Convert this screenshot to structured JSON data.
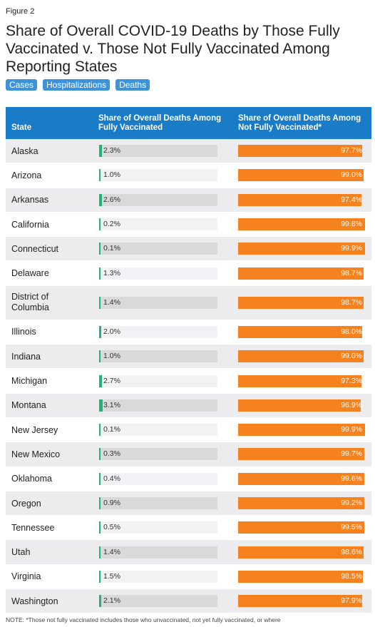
{
  "header": {
    "figure": "Figure 2",
    "title": "Share of Overall COVID-19 Deaths by Those Fully Vaccinated v. Those Not Fully Vaccinated Among Reporting States",
    "tabs": [
      "Cases",
      "Hospitalizations",
      "Deaths"
    ]
  },
  "table": {
    "columns": [
      "State",
      "Share of Overall Deaths Among Fully Vaccinated",
      "Share of Overall Deaths Among Not Fully Vaccinated*"
    ],
    "xlim": [
      0,
      100
    ],
    "colors": {
      "vaccinated": "#1fb57a",
      "not_vaccinated": "#f5821f"
    },
    "rows": [
      {
        "state": "Alaska",
        "vaccinated": 2.3,
        "vaccinated_label": "2.3%",
        "not_vaccinated": 97.7,
        "not_vaccinated_label": "97.7%"
      },
      {
        "state": "Arizona",
        "vaccinated": 1.0,
        "vaccinated_label": "1.0%",
        "not_vaccinated": 99.0,
        "not_vaccinated_label": "99.0%"
      },
      {
        "state": "Arkansas",
        "vaccinated": 2.6,
        "vaccinated_label": "2.6%",
        "not_vaccinated": 97.4,
        "not_vaccinated_label": "97.4%"
      },
      {
        "state": "California",
        "vaccinated": 0.2,
        "vaccinated_label": "0.2%",
        "not_vaccinated": 99.8,
        "not_vaccinated_label": "99.8%"
      },
      {
        "state": "Connecticut",
        "vaccinated": 0.1,
        "vaccinated_label": "0.1%",
        "not_vaccinated": 99.9,
        "not_vaccinated_label": "99.9%"
      },
      {
        "state": "Delaware",
        "vaccinated": 1.3,
        "vaccinated_label": "1.3%",
        "not_vaccinated": 98.7,
        "not_vaccinated_label": "98.7%"
      },
      {
        "state": "District of Columbia",
        "vaccinated": 1.4,
        "vaccinated_label": "1.4%",
        "not_vaccinated": 98.7,
        "not_vaccinated_label": "98.7%"
      },
      {
        "state": "Illinois",
        "vaccinated": 2.0,
        "vaccinated_label": "2.0%",
        "not_vaccinated": 98.0,
        "not_vaccinated_label": "98.0%"
      },
      {
        "state": "Indiana",
        "vaccinated": 1.0,
        "vaccinated_label": "1.0%",
        "not_vaccinated": 99.0,
        "not_vaccinated_label": "99.0%"
      },
      {
        "state": "Michigan",
        "vaccinated": 2.7,
        "vaccinated_label": "2.7%",
        "not_vaccinated": 97.3,
        "not_vaccinated_label": "97.3%"
      },
      {
        "state": "Montana",
        "vaccinated": 3.1,
        "vaccinated_label": "3.1%",
        "not_vaccinated": 96.9,
        "not_vaccinated_label": "96.9%"
      },
      {
        "state": "New Jersey",
        "vaccinated": 0.1,
        "vaccinated_label": "0.1%",
        "not_vaccinated": 99.9,
        "not_vaccinated_label": "99.9%"
      },
      {
        "state": "New Mexico",
        "vaccinated": 0.3,
        "vaccinated_label": "0.3%",
        "not_vaccinated": 99.7,
        "not_vaccinated_label": "99.7%"
      },
      {
        "state": "Oklahoma",
        "vaccinated": 0.4,
        "vaccinated_label": "0.4%",
        "not_vaccinated": 99.6,
        "not_vaccinated_label": "99.6%"
      },
      {
        "state": "Oregon",
        "vaccinated": 0.9,
        "vaccinated_label": "0.9%",
        "not_vaccinated": 99.2,
        "not_vaccinated_label": "99.2%"
      },
      {
        "state": "Tennessee",
        "vaccinated": 0.5,
        "vaccinated_label": "0.5%",
        "not_vaccinated": 99.5,
        "not_vaccinated_label": "99.5%"
      },
      {
        "state": "Utah",
        "vaccinated": 1.4,
        "vaccinated_label": "1.4%",
        "not_vaccinated": 98.6,
        "not_vaccinated_label": "98.6%"
      },
      {
        "state": "Virginia",
        "vaccinated": 1.5,
        "vaccinated_label": "1.5%",
        "not_vaccinated": 98.5,
        "not_vaccinated_label": "98.5%"
      },
      {
        "state": "Washington",
        "vaccinated": 2.1,
        "vaccinated_label": "2.1%",
        "not_vaccinated": 97.9,
        "not_vaccinated_label": "97.9%"
      }
    ]
  },
  "note": "NOTE: *Those not fully vaccinated includes those who unvaccinated, not yet fully vaccinated, or where"
}
